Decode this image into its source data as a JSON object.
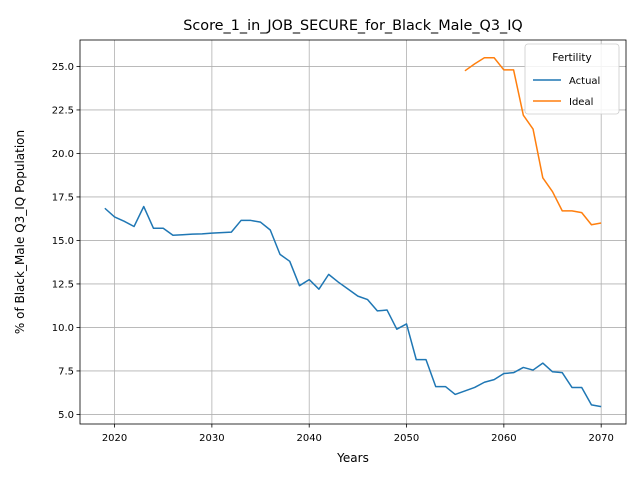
{
  "chart_data": {
    "type": "line",
    "title": "Score_1_in_JOB_SECURE_for_Black_Male_Q3_IQ",
    "xlabel": "Years",
    "ylabel": "% of Black_Male Q3_IQ Population",
    "xlim": [
      2016.45,
      2072.55
    ],
    "ylim": [
      4.45,
      26.52
    ],
    "xticks": [
      2020,
      2030,
      2040,
      2050,
      2060,
      2070
    ],
    "yticks": [
      5.0,
      7.5,
      10.0,
      12.5,
      15.0,
      17.5,
      20.0,
      22.5,
      25.0
    ],
    "xtick_labels": [
      "2020",
      "2030",
      "2040",
      "2050",
      "2060",
      "2070"
    ],
    "ytick_labels": [
      "5.0",
      "7.5",
      "10.0",
      "12.5",
      "15.0",
      "17.5",
      "20.0",
      "22.5",
      "25.0"
    ],
    "grid": true,
    "legend": {
      "title": "Fertility",
      "placement": "top-right"
    },
    "series": [
      {
        "name": "Actual",
        "color": "#1f77b4",
        "x": [
          2019,
          2020,
          2021,
          2022,
          2023,
          2024,
          2025,
          2026,
          2027,
          2028,
          2029,
          2030,
          2031,
          2032,
          2033,
          2034,
          2035,
          2036,
          2037,
          2038,
          2039,
          2040,
          2041,
          2042,
          2043,
          2044,
          2045,
          2046,
          2047,
          2048,
          2049,
          2050,
          2051,
          2052,
          2053,
          2054,
          2055,
          2056,
          2057,
          2058,
          2059,
          2060,
          2061,
          2062,
          2063,
          2064,
          2065,
          2066,
          2067,
          2068,
          2069,
          2070
        ],
        "values": [
          16.85,
          16.35,
          16.1,
          15.8,
          16.95,
          15.7,
          15.7,
          15.3,
          15.33,
          15.36,
          15.38,
          15.42,
          15.45,
          15.48,
          16.15,
          16.15,
          16.05,
          15.6,
          14.2,
          13.8,
          12.4,
          12.75,
          12.2,
          13.05,
          12.6,
          12.2,
          11.8,
          11.6,
          10.95,
          11.0,
          9.9,
          10.2,
          8.15,
          8.15,
          6.6,
          6.6,
          6.15,
          6.35,
          6.55,
          6.85,
          7.0,
          7.35,
          7.4,
          7.7,
          7.55,
          7.95,
          7.45,
          7.4,
          6.55,
          6.55,
          5.55,
          5.45
        ]
      },
      {
        "name": "Ideal",
        "color": "#ff7f0e",
        "x": [
          2056,
          2057,
          2058,
          2059,
          2060,
          2061,
          2062,
          2063,
          2064,
          2065,
          2066,
          2067,
          2068,
          2069,
          2070
        ],
        "values": [
          24.75,
          25.15,
          25.5,
          25.5,
          24.8,
          24.8,
          22.2,
          21.4,
          18.6,
          17.8,
          16.7,
          16.7,
          16.6,
          15.9,
          16.0
        ]
      }
    ]
  }
}
